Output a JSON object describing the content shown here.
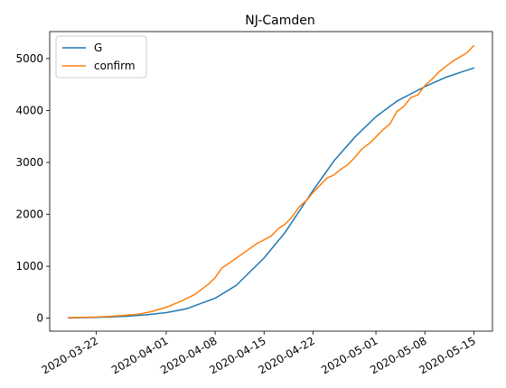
{
  "chart_data": {
    "type": "line",
    "title": "NJ-Camden",
    "xlabel": "",
    "ylabel": "",
    "x_axis": {
      "type": "date",
      "range": [
        "2020-03-18",
        "2020-05-15"
      ],
      "ticks": [
        "2020-03-22",
        "2020-04-01",
        "2020-04-08",
        "2020-04-15",
        "2020-04-22",
        "2020-05-01",
        "2020-05-08",
        "2020-05-15"
      ]
    },
    "y_axis": {
      "range": [
        -250,
        5520
      ],
      "ticks": [
        0,
        1000,
        2000,
        3000,
        4000,
        5000
      ]
    },
    "grid": false,
    "legend": {
      "position": "top-left",
      "entries": [
        "G",
        "confirm"
      ]
    },
    "series": [
      {
        "name": "G",
        "color": "#1f77b4",
        "points": [
          [
            "2020-03-18",
            5
          ],
          [
            "2020-03-22",
            14
          ],
          [
            "2020-03-26",
            35
          ],
          [
            "2020-03-29",
            62
          ],
          [
            "2020-04-01",
            107
          ],
          [
            "2020-04-04",
            185
          ],
          [
            "2020-04-08",
            385
          ],
          [
            "2020-04-11",
            630
          ],
          [
            "2020-04-15",
            1160
          ],
          [
            "2020-04-18",
            1650
          ],
          [
            "2020-04-22",
            2460
          ],
          [
            "2020-04-25",
            3030
          ],
          [
            "2020-04-28",
            3490
          ],
          [
            "2020-05-01",
            3880
          ],
          [
            "2020-05-04",
            4180
          ],
          [
            "2020-05-08",
            4460
          ],
          [
            "2020-05-11",
            4640
          ],
          [
            "2020-05-15",
            4820
          ]
        ]
      },
      {
        "name": "confirm",
        "color": "#ff7f0e",
        "points": [
          [
            "2020-03-18",
            10
          ],
          [
            "2020-03-20",
            15
          ],
          [
            "2020-03-22",
            22
          ],
          [
            "2020-03-24",
            35
          ],
          [
            "2020-03-26",
            55
          ],
          [
            "2020-03-28",
            75
          ],
          [
            "2020-03-30",
            130
          ],
          [
            "2020-04-01",
            210
          ],
          [
            "2020-04-03",
            320
          ],
          [
            "2020-04-05",
            450
          ],
          [
            "2020-04-07",
            650
          ],
          [
            "2020-04-08",
            780
          ],
          [
            "2020-04-09",
            970
          ],
          [
            "2020-04-10",
            1060
          ],
          [
            "2020-04-12",
            1250
          ],
          [
            "2020-04-14",
            1440
          ],
          [
            "2020-04-16",
            1580
          ],
          [
            "2020-04-17",
            1720
          ],
          [
            "2020-04-18",
            1810
          ],
          [
            "2020-04-19",
            1950
          ],
          [
            "2020-04-20",
            2140
          ],
          [
            "2020-04-21",
            2260
          ],
          [
            "2020-04-22",
            2420
          ],
          [
            "2020-04-23",
            2560
          ],
          [
            "2020-04-24",
            2700
          ],
          [
            "2020-04-25",
            2760
          ],
          [
            "2020-04-26",
            2870
          ],
          [
            "2020-04-27",
            2960
          ],
          [
            "2020-04-28",
            3100
          ],
          [
            "2020-04-29",
            3260
          ],
          [
            "2020-04-30",
            3360
          ],
          [
            "2020-05-01",
            3490
          ],
          [
            "2020-05-02",
            3630
          ],
          [
            "2020-05-03",
            3740
          ],
          [
            "2020-05-04",
            3980
          ],
          [
            "2020-05-05",
            4080
          ],
          [
            "2020-05-06",
            4250
          ],
          [
            "2020-05-07",
            4300
          ],
          [
            "2020-05-08",
            4480
          ],
          [
            "2020-05-09",
            4600
          ],
          [
            "2020-05-10",
            4740
          ],
          [
            "2020-05-11",
            4850
          ],
          [
            "2020-05-12",
            4950
          ],
          [
            "2020-05-13",
            5030
          ],
          [
            "2020-05-14",
            5110
          ],
          [
            "2020-05-15",
            5250
          ]
        ]
      }
    ]
  }
}
